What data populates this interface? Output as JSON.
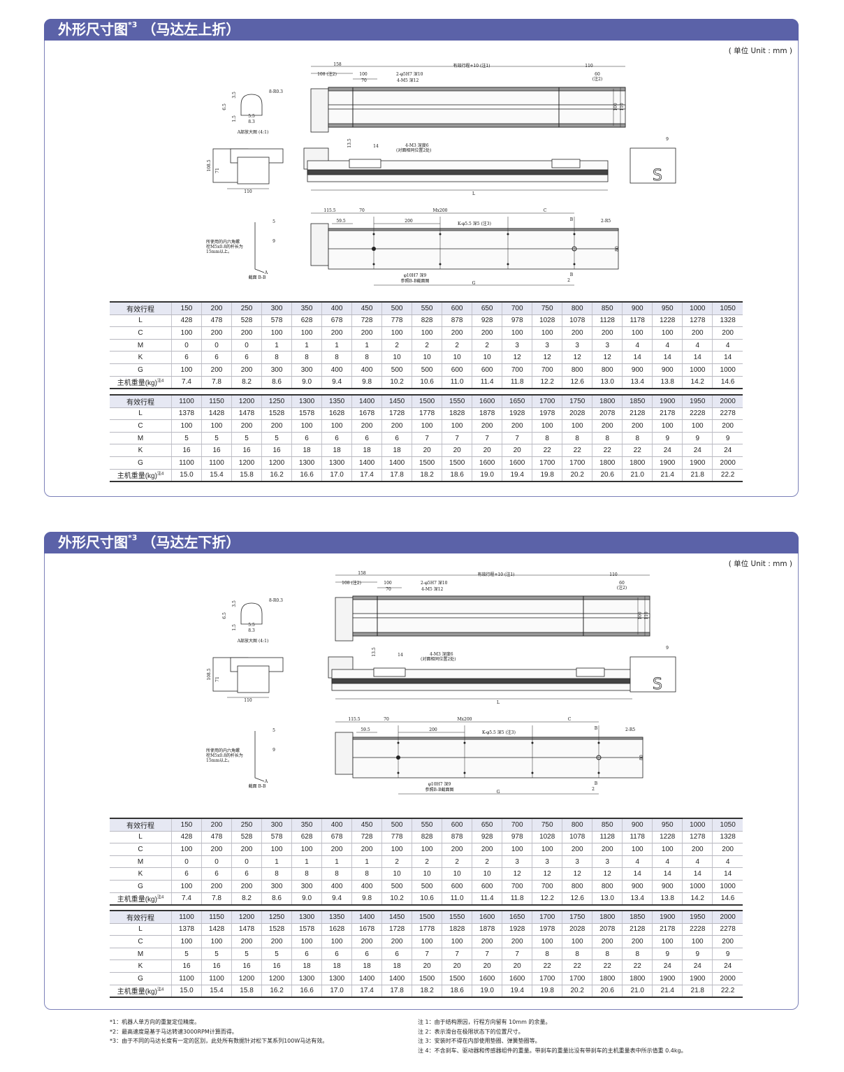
{
  "sections": [
    {
      "title": "外形尺寸图",
      "title_sup": "*3",
      "subtitle": "（马达左上折）",
      "unit": "( 单位 Unit : mm )",
      "drawing": {
        "d158": "158",
        "stroke10": "有效行程+10 (注1)",
        "d110a": "110",
        "d108": "108 (注2)",
        "d100": "100",
        "d70": "70",
        "pin": "2-φ5H7 深10",
        "m5": "4-M5 深12",
        "d60": "60",
        "n2": "(注2)",
        "h100": "100",
        "h110": "110",
        "r03": "8-R0.3",
        "a35": "3.5",
        "a65": "6.5",
        "a15": "1.5",
        "a55": "5.5",
        "a83": "8.3",
        "adetail": "A部放大图 (4:1)",
        "e1085": "108.5",
        "e71": "71",
        "e110": "110",
        "s135": "13.5",
        "s14": "14",
        "m3": "4-M3 深度6",
        "m3b": "(对面相同位置2处)",
        "L": "L",
        "s9": "9",
        "b1155": "115.5",
        "b70": "70",
        "bm": "Mx200",
        "bc": "C",
        "b595": "59.5",
        "b200": "200",
        "bk": "K-φ5.5 深5 (注3)",
        "bB": "B",
        "r5": "2-R5",
        "b80": "80",
        "b10": "φ10H7 深9",
        "bref": "参照B-B截面图",
        "bG": "G",
        "b2": "2",
        "x5": "5",
        "x9": "9",
        "bolt1": "所使用的内六角螺",
        "bolt2": "栓M5x0.8的杆长为",
        "bolt3": "15mm以上。",
        "xA": "A",
        "xsec": "截面 B-B"
      },
      "tables": [
        {
          "rows": [
            {
              "label": "有效行程",
              "values": [
                "150",
                "200",
                "250",
                "300",
                "350",
                "400",
                "450",
                "500",
                "550",
                "600",
                "650",
                "700",
                "750",
                "800",
                "850",
                "900",
                "950",
                "1000",
                "1050"
              ]
            },
            {
              "label": "L",
              "values": [
                "428",
                "478",
                "528",
                "578",
                "628",
                "678",
                "728",
                "778",
                "828",
                "878",
                "928",
                "978",
                "1028",
                "1078",
                "1128",
                "1178",
                "1228",
                "1278",
                "1328"
              ]
            },
            {
              "label": "C",
              "values": [
                "100",
                "200",
                "200",
                "100",
                "100",
                "200",
                "200",
                "100",
                "100",
                "200",
                "200",
                "100",
                "100",
                "200",
                "200",
                "100",
                "100",
                "200",
                "200"
              ]
            },
            {
              "label": "M",
              "values": [
                "0",
                "0",
                "0",
                "1",
                "1",
                "1",
                "1",
                "2",
                "2",
                "2",
                "2",
                "3",
                "3",
                "3",
                "3",
                "4",
                "4",
                "4",
                "4"
              ]
            },
            {
              "label": "K",
              "values": [
                "6",
                "6",
                "6",
                "8",
                "8",
                "8",
                "8",
                "10",
                "10",
                "10",
                "10",
                "12",
                "12",
                "12",
                "12",
                "14",
                "14",
                "14",
                "14"
              ]
            },
            {
              "label": "G",
              "values": [
                "100",
                "200",
                "200",
                "300",
                "300",
                "400",
                "400",
                "500",
                "500",
                "600",
                "600",
                "700",
                "700",
                "800",
                "800",
                "900",
                "900",
                "1000",
                "1000"
              ]
            },
            {
              "label": "主机重量(kg)",
              "sup": "注4",
              "values": [
                "7.4",
                "7.8",
                "8.2",
                "8.6",
                "9.0",
                "9.4",
                "9.8",
                "10.2",
                "10.6",
                "11.0",
                "11.4",
                "11.8",
                "12.2",
                "12.6",
                "13.0",
                "13.4",
                "13.8",
                "14.2",
                "14.6"
              ]
            }
          ]
        },
        {
          "rows": [
            {
              "label": "有效行程",
              "values": [
                "1100",
                "1150",
                "1200",
                "1250",
                "1300",
                "1350",
                "1400",
                "1450",
                "1500",
                "1550",
                "1600",
                "1650",
                "1700",
                "1750",
                "1800",
                "1850",
                "1900",
                "1950",
                "2000"
              ]
            },
            {
              "label": "L",
              "values": [
                "1378",
                "1428",
                "1478",
                "1528",
                "1578",
                "1628",
                "1678",
                "1728",
                "1778",
                "1828",
                "1878",
                "1928",
                "1978",
                "2028",
                "2078",
                "2128",
                "2178",
                "2228",
                "2278"
              ]
            },
            {
              "label": "C",
              "values": [
                "100",
                "100",
                "200",
                "200",
                "100",
                "100",
                "200",
                "200",
                "100",
                "100",
                "200",
                "200",
                "100",
                "100",
                "200",
                "200",
                "100",
                "100",
                "200"
              ]
            },
            {
              "label": "M",
              "values": [
                "5",
                "5",
                "5",
                "5",
                "6",
                "6",
                "6",
                "6",
                "7",
                "7",
                "7",
                "7",
                "8",
                "8",
                "8",
                "8",
                "9",
                "9",
                "9"
              ]
            },
            {
              "label": "K",
              "values": [
                "16",
                "16",
                "16",
                "16",
                "18",
                "18",
                "18",
                "18",
                "20",
                "20",
                "20",
                "20",
                "22",
                "22",
                "22",
                "22",
                "24",
                "24",
                "24"
              ]
            },
            {
              "label": "G",
              "values": [
                "1100",
                "1100",
                "1200",
                "1200",
                "1300",
                "1300",
                "1400",
                "1400",
                "1500",
                "1500",
                "1600",
                "1600",
                "1700",
                "1700",
                "1800",
                "1800",
                "1900",
                "1900",
                "2000"
              ]
            },
            {
              "label": "主机重量(kg)",
              "sup": "注4",
              "values": [
                "15.0",
                "15.4",
                "15.8",
                "16.2",
                "16.6",
                "17.0",
                "17.4",
                "17.8",
                "18.2",
                "18.6",
                "19.0",
                "19.4",
                "19.8",
                "20.2",
                "20.6",
                "21.0",
                "21.4",
                "21.8",
                "22.2"
              ]
            }
          ]
        }
      ]
    },
    {
      "title": "外形尺寸图",
      "title_sup": "*3",
      "subtitle": "（马达左下折）",
      "unit": "( 单位 Unit : mm )",
      "drawing": {
        "d158": "158",
        "stroke10": "有效行程+10 (注1)",
        "d110a": "110",
        "d108": "108 (注2)",
        "d100": "100",
        "d70": "70",
        "pin": "2-φ5H7 深10",
        "m5": "4-M5 深12",
        "d60": "60",
        "n2": "(注2)",
        "h100": "100",
        "h110": "110",
        "r03": "8-R0.3",
        "a35": "3.5",
        "a65": "6.5",
        "a15": "1.5",
        "a55": "5.5",
        "a83": "8.3",
        "adetail": "A部放大图 (4:1)",
        "e1085": "108.5",
        "e71": "71",
        "e110": "110",
        "s135": "13.5",
        "s14": "14",
        "m3": "4-M3 深度6",
        "m3b": "(对面相同位置2处)",
        "L": "L",
        "s9": "9",
        "b1155": "115.5",
        "b70": "70",
        "bm": "Mx200",
        "bc": "C",
        "b595": "59.5",
        "b200": "200",
        "bk": "K-φ5.5 深5 (注3)",
        "bB": "B",
        "r5": "2-R5",
        "b80": "80",
        "b10": "φ10H7 深9",
        "bref": "参照B-B截面图",
        "bG": "G",
        "b2": "2",
        "x5": "5",
        "x9": "9",
        "bolt1": "所使用的内六角螺",
        "bolt2": "栓M5x0.8的杆长为",
        "bolt3": "15mm以上。",
        "xA": "A",
        "xsec": "截面 B-B"
      },
      "tables": [
        {
          "rows": [
            {
              "label": "有效行程",
              "values": [
                "150",
                "200",
                "250",
                "300",
                "350",
                "400",
                "450",
                "500",
                "550",
                "600",
                "650",
                "700",
                "750",
                "800",
                "850",
                "900",
                "950",
                "1000",
                "1050"
              ]
            },
            {
              "label": "L",
              "values": [
                "428",
                "478",
                "528",
                "578",
                "628",
                "678",
                "728",
                "778",
                "828",
                "878",
                "928",
                "978",
                "1028",
                "1078",
                "1128",
                "1178",
                "1228",
                "1278",
                "1328"
              ]
            },
            {
              "label": "C",
              "values": [
                "100",
                "200",
                "200",
                "100",
                "100",
                "200",
                "200",
                "100",
                "100",
                "200",
                "200",
                "100",
                "100",
                "200",
                "200",
                "100",
                "100",
                "200",
                "200"
              ]
            },
            {
              "label": "M",
              "values": [
                "0",
                "0",
                "0",
                "1",
                "1",
                "1",
                "1",
                "2",
                "2",
                "2",
                "2",
                "3",
                "3",
                "3",
                "3",
                "4",
                "4",
                "4",
                "4"
              ]
            },
            {
              "label": "K",
              "values": [
                "6",
                "6",
                "6",
                "8",
                "8",
                "8",
                "8",
                "10",
                "10",
                "10",
                "10",
                "12",
                "12",
                "12",
                "12",
                "14",
                "14",
                "14",
                "14"
              ]
            },
            {
              "label": "G",
              "values": [
                "100",
                "200",
                "200",
                "300",
                "300",
                "400",
                "400",
                "500",
                "500",
                "600",
                "600",
                "700",
                "700",
                "800",
                "800",
                "900",
                "900",
                "1000",
                "1000"
              ]
            },
            {
              "label": "主机重量(kg)",
              "sup": "注4",
              "values": [
                "7.4",
                "7.8",
                "8.2",
                "8.6",
                "9.0",
                "9.4",
                "9.8",
                "10.2",
                "10.6",
                "11.0",
                "11.4",
                "11.8",
                "12.2",
                "12.6",
                "13.0",
                "13.4",
                "13.8",
                "14.2",
                "14.6"
              ]
            }
          ]
        },
        {
          "rows": [
            {
              "label": "有效行程",
              "values": [
                "1100",
                "1150",
                "1200",
                "1250",
                "1300",
                "1350",
                "1400",
                "1450",
                "1500",
                "1550",
                "1600",
                "1650",
                "1700",
                "1750",
                "1800",
                "1850",
                "1900",
                "1950",
                "2000"
              ]
            },
            {
              "label": "L",
              "values": [
                "1378",
                "1428",
                "1478",
                "1528",
                "1578",
                "1628",
                "1678",
                "1728",
                "1778",
                "1828",
                "1878",
                "1928",
                "1978",
                "2028",
                "2078",
                "2128",
                "2178",
                "2228",
                "2278"
              ]
            },
            {
              "label": "C",
              "values": [
                "100",
                "100",
                "200",
                "200",
                "100",
                "100",
                "200",
                "200",
                "100",
                "100",
                "200",
                "200",
                "100",
                "100",
                "200",
                "200",
                "100",
                "100",
                "200"
              ]
            },
            {
              "label": "M",
              "values": [
                "5",
                "5",
                "5",
                "5",
                "6",
                "6",
                "6",
                "6",
                "7",
                "7",
                "7",
                "7",
                "8",
                "8",
                "8",
                "8",
                "9",
                "9",
                "9"
              ]
            },
            {
              "label": "K",
              "values": [
                "16",
                "16",
                "16",
                "16",
                "18",
                "18",
                "18",
                "18",
                "20",
                "20",
                "20",
                "20",
                "22",
                "22",
                "22",
                "22",
                "24",
                "24",
                "24"
              ]
            },
            {
              "label": "G",
              "values": [
                "1100",
                "1100",
                "1200",
                "1200",
                "1300",
                "1300",
                "1400",
                "1400",
                "1500",
                "1500",
                "1600",
                "1600",
                "1700",
                "1700",
                "1800",
                "1800",
                "1900",
                "1900",
                "2000"
              ]
            },
            {
              "label": "主机重量(kg)",
              "sup": "注4",
              "values": [
                "15.0",
                "15.4",
                "15.8",
                "16.2",
                "16.6",
                "17.0",
                "17.4",
                "17.8",
                "18.2",
                "18.6",
                "19.0",
                "19.4",
                "19.8",
                "20.2",
                "20.6",
                "21.0",
                "21.4",
                "21.8",
                "22.2"
              ]
            }
          ]
        }
      ]
    }
  ],
  "notes_left": [
    "*1：机器人单方向的重复定位精度。",
    "*2：最高速度是基于马达转速3000RPM计算而得。",
    "*3：由于不同的马达长度有一定的区别，此处所有数据针对松下某系列100W马达有效。"
  ],
  "notes_right": [
    "注 1：由于结构原因，行程方向留有 10mm 的余量。",
    "注 2：表示滑台在极限状态下的位置尺寸。",
    "注 3：安装时不得在内部使用垫圈、弹簧垫圈等。",
    "注 4：不含刹车、驱动器和传感器组件的重量。带刹车的重量比没有带刹车的主机重量表中所示值重 0.4kg。"
  ],
  "colors": {
    "header": "#5b62a8",
    "border": "#7b80b8",
    "table_header_bg": "#e6e8f3"
  }
}
